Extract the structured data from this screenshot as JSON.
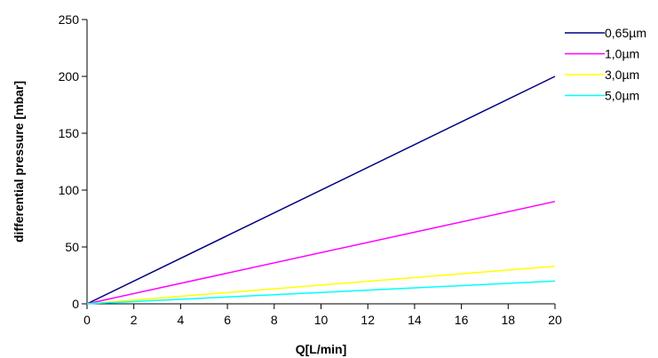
{
  "chart_data": {
    "type": "line",
    "title": "",
    "xlabel": "Q[L/min]",
    "ylabel": "differential pressure [mbar]",
    "xlim": [
      0,
      20
    ],
    "ylim": [
      0,
      250
    ],
    "x_ticks": [
      0,
      2,
      4,
      6,
      8,
      10,
      12,
      14,
      16,
      18,
      20
    ],
    "y_ticks": [
      0,
      50,
      100,
      150,
      200,
      250
    ],
    "grid": false,
    "legend_position": "top-right",
    "series": [
      {
        "name": "0,65µm",
        "color": "#000080",
        "x": [
          0,
          20
        ],
        "y": [
          0,
          200
        ]
      },
      {
        "name": "1,0µm",
        "color": "#ff00ff",
        "x": [
          0,
          20
        ],
        "y": [
          0,
          90
        ]
      },
      {
        "name": "3,0µm",
        "color": "#ffff00",
        "x": [
          0,
          20
        ],
        "y": [
          0,
          33
        ]
      },
      {
        "name": "5,0µm",
        "color": "#00ffff",
        "x": [
          0,
          20
        ],
        "y": [
          0,
          20
        ]
      }
    ]
  }
}
